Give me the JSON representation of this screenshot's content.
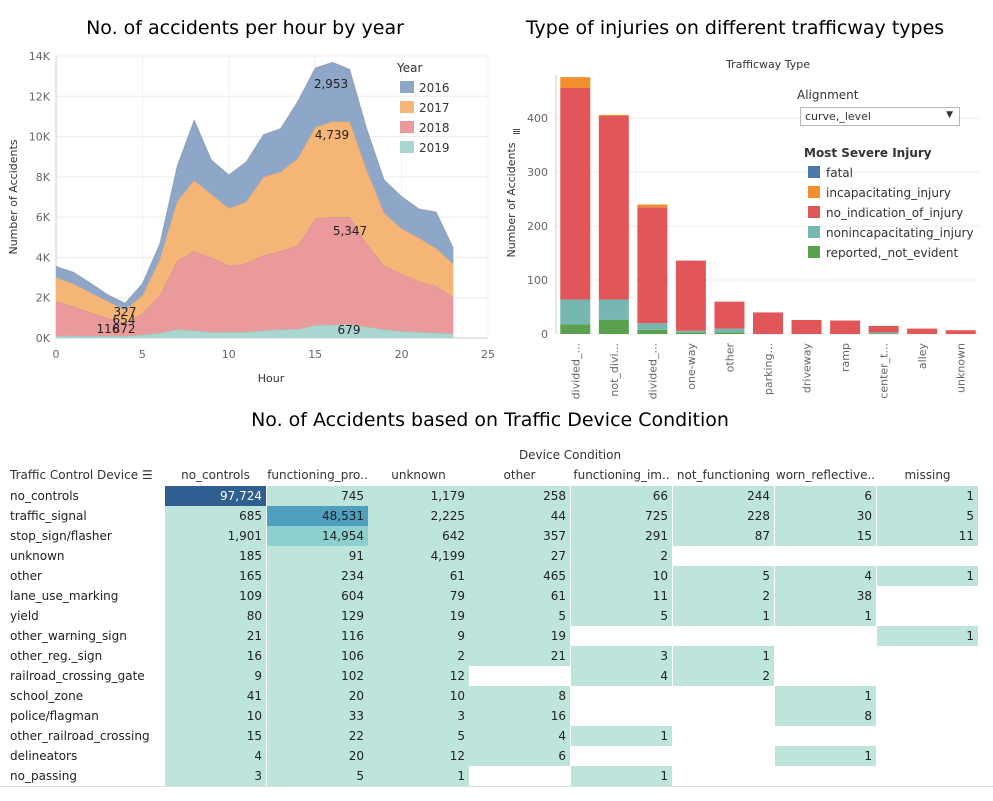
{
  "titles": {
    "area": "No. of accidents per hour by year",
    "bar": "Type of injuries on different trafficway types",
    "heat": "No. of Accidents based on Traffic Device Condition"
  },
  "chart_data": [
    {
      "type": "area",
      "title": "No. of accidents per hour by year",
      "xlabel": "Hour",
      "ylabel": "Number of Accidents",
      "xlim": [
        0,
        25
      ],
      "ylim": [
        0,
        14000
      ],
      "x_ticks": [
        "0",
        "5",
        "10",
        "15",
        "20",
        "25"
      ],
      "y_ticks": [
        "0K",
        "2K",
        "4K",
        "6K",
        "8K",
        "10K",
        "12K",
        "14K"
      ],
      "stacked": true,
      "x": [
        0,
        1,
        2,
        3,
        4,
        5,
        6,
        7,
        8,
        9,
        10,
        11,
        12,
        13,
        14,
        15,
        16,
        17,
        18,
        19,
        20,
        21,
        22,
        23
      ],
      "legend_title": "Year",
      "series": [
        {
          "name": "2019",
          "color": "#a9d6d0",
          "values": [
            110,
            105,
            100,
            116,
            100,
            160,
            250,
            420,
            370,
            290,
            300,
            300,
            370,
            420,
            440,
            640,
            660,
            679,
            560,
            420,
            340,
            300,
            260,
            210
          ]
        },
        {
          "name": "2018",
          "color": "#ea9a9b",
          "values": [
            1700,
            1470,
            1150,
            872,
            654,
            1050,
            1850,
            3400,
            3950,
            3700,
            3300,
            3400,
            3730,
            3900,
            4160,
            5300,
            5347,
            5322,
            4100,
            3160,
            2850,
            2520,
            2320,
            1800
          ]
        },
        {
          "name": "2017",
          "color": "#f5b577",
          "values": [
            1200,
            1120,
            1000,
            840,
            650,
            900,
            1800,
            2950,
            3520,
            3150,
            2850,
            3050,
            3900,
            3930,
            4320,
            4520,
            4739,
            4739,
            3650,
            2620,
            2240,
            2150,
            1880,
            1660
          ]
        },
        {
          "name": "2016",
          "color": "#8ea6c8",
          "values": [
            550,
            580,
            480,
            327,
            327,
            600,
            780,
            1750,
            3000,
            1700,
            1650,
            2000,
            2100,
            2150,
            2850,
            2950,
            2953,
            2600,
            2050,
            1650,
            1600,
            1450,
            1800,
            800
          ]
        }
      ],
      "data_labels": [
        {
          "text": "2,953"
        },
        {
          "text": "4,739"
        },
        {
          "text": "5,347"
        },
        {
          "text": "679"
        },
        {
          "text": "327"
        },
        {
          "text": "654"
        },
        {
          "text": "116"
        },
        {
          "text": "872"
        }
      ]
    },
    {
      "type": "bar",
      "title": "Type of injuries on different trafficway types",
      "header": "Trafficway Type",
      "ylabel": "Number of Accidents",
      "ylim": [
        0,
        480
      ],
      "y_ticks": [
        "0",
        "100",
        "200",
        "300",
        "400"
      ],
      "stacked": true,
      "filter": {
        "label": "Alignment",
        "value": "curve,_level"
      },
      "legend_title": "Most Severe Injury",
      "categories": [
        "divided_...",
        "not_divi...",
        "divided_...",
        "one-way",
        "other",
        "parking...",
        "driveway",
        "ramp",
        "center_t...",
        "alley",
        "unknown"
      ],
      "series": [
        {
          "name": "fatal",
          "color": "#4e79a7",
          "values": [
            0,
            0,
            0,
            0,
            0,
            0,
            0,
            0,
            0,
            0,
            0
          ]
        },
        {
          "name": "incapacitating_injury",
          "color": "#f28e2b",
          "values": [
            20,
            2,
            5,
            0,
            0,
            0,
            0,
            0,
            0,
            0,
            0
          ]
        },
        {
          "name": "no_indication_of_injury",
          "color": "#e15759",
          "values": [
            392,
            340,
            215,
            130,
            50,
            40,
            26,
            25,
            12,
            10,
            7
          ]
        },
        {
          "name": "nonincapacitating_injury",
          "color": "#76b7b2",
          "values": [
            46,
            38,
            12,
            3,
            7,
            0,
            0,
            0,
            2,
            0,
            0
          ]
        },
        {
          "name": "reported,_not_evident",
          "color": "#59a14f",
          "values": [
            18,
            26,
            8,
            3,
            3,
            0,
            0,
            0,
            1,
            0,
            0
          ]
        }
      ]
    },
    {
      "type": "heatmap",
      "title": "No. of Accidents based on Traffic Device Condition",
      "column_header": "Device Condition",
      "row_header": "Traffic Control Device",
      "columns": [
        "no_controls",
        "functioning_pro..",
        "unknown",
        "other",
        "functioning_im..",
        "not_functioning",
        "worn_reflective..",
        "missing"
      ],
      "rows": [
        {
          "label": "no_controls",
          "values": [
            "97,724",
            "745",
            "1,179",
            "258",
            "66",
            "244",
            "6",
            "1"
          ]
        },
        {
          "label": "traffic_signal",
          "values": [
            "685",
            "48,531",
            "2,225",
            "44",
            "725",
            "228",
            "30",
            "5"
          ]
        },
        {
          "label": "stop_sign/flasher",
          "values": [
            "1,901",
            "14,954",
            "642",
            "357",
            "291",
            "87",
            "15",
            "11"
          ]
        },
        {
          "label": "unknown",
          "values": [
            "185",
            "91",
            "4,199",
            "27",
            "2",
            "",
            "",
            ""
          ]
        },
        {
          "label": "other",
          "values": [
            "165",
            "234",
            "61",
            "465",
            "10",
            "5",
            "4",
            "1"
          ]
        },
        {
          "label": "lane_use_marking",
          "values": [
            "109",
            "604",
            "79",
            "61",
            "11",
            "2",
            "38",
            ""
          ]
        },
        {
          "label": "yield",
          "values": [
            "80",
            "129",
            "19",
            "5",
            "5",
            "1",
            "1",
            ""
          ]
        },
        {
          "label": "other_warning_sign",
          "values": [
            "21",
            "116",
            "9",
            "19",
            "",
            "",
            "",
            "1"
          ]
        },
        {
          "label": "other_reg._sign",
          "values": [
            "16",
            "106",
            "2",
            "21",
            "3",
            "1",
            "",
            ""
          ]
        },
        {
          "label": "railroad_crossing_gate",
          "values": [
            "9",
            "102",
            "12",
            "",
            "4",
            "2",
            "",
            ""
          ]
        },
        {
          "label": "school_zone",
          "values": [
            "41",
            "20",
            "10",
            "8",
            "",
            "",
            "1",
            ""
          ]
        },
        {
          "label": "police/flagman",
          "values": [
            "10",
            "33",
            "3",
            "16",
            "",
            "",
            "8",
            ""
          ]
        },
        {
          "label": "other_railroad_crossing",
          "values": [
            "15",
            "22",
            "5",
            "4",
            "1",
            "",
            "",
            ""
          ]
        },
        {
          "label": "delineators",
          "values": [
            "4",
            "20",
            "12",
            "6",
            "",
            "",
            "1",
            ""
          ]
        },
        {
          "label": "no_passing",
          "values": [
            "3",
            "5",
            "1",
            "",
            "1",
            "",
            "",
            ""
          ]
        }
      ]
    }
  ]
}
